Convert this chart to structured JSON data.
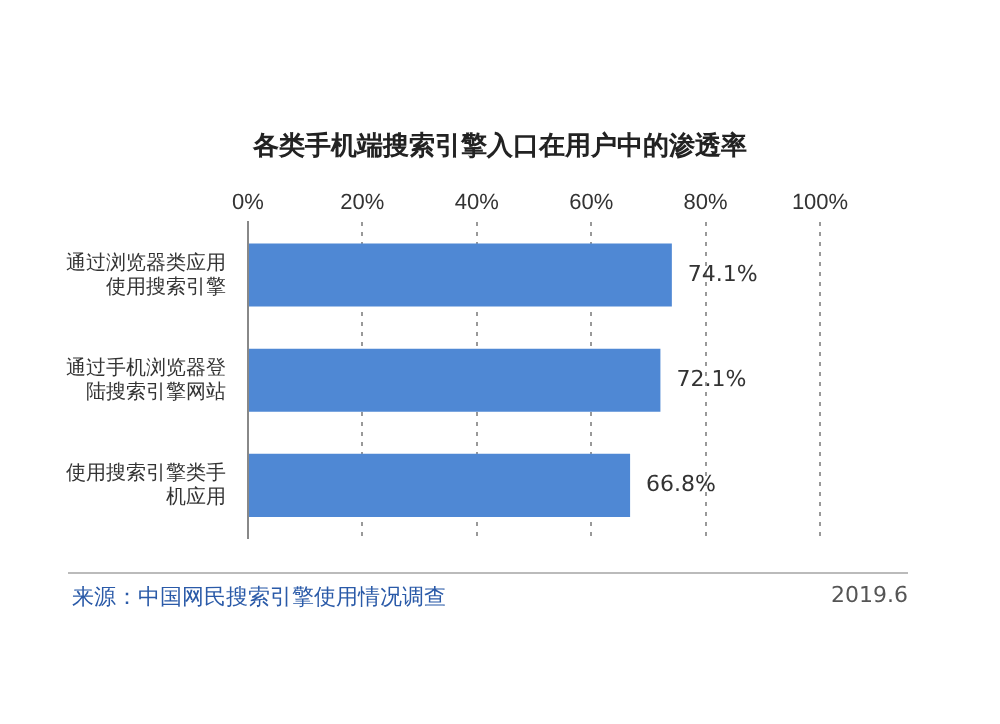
{
  "chart_data": {
    "type": "bar",
    "orientation": "horizontal",
    "title": "各类手机端搜索引擎入口在用户中的渗透率",
    "categories": [
      "通过浏览器类应用使用搜索引擎",
      "通过手机浏览器登陆搜索引擎网站",
      "使用搜索引擎类手机应用"
    ],
    "values": [
      74.1,
      72.1,
      66.8
    ],
    "value_labels": [
      "74.1%",
      "72.1%",
      "66.8%"
    ],
    "color": "#4f88d4",
    "xlim": [
      0,
      100
    ],
    "xticks": [
      {
        "value": 0,
        "label": "0%"
      },
      {
        "value": 20,
        "label": "20%"
      },
      {
        "value": 40,
        "label": "40%"
      },
      {
        "value": 60,
        "label": "60%"
      },
      {
        "value": 80,
        "label": "80%"
      },
      {
        "value": 100,
        "label": "100%"
      }
    ],
    "grid": "x",
    "legend": false,
    "annotations": [
      "来源：中国网民搜索引擎使用情况调查",
      "2019.6"
    ]
  }
}
